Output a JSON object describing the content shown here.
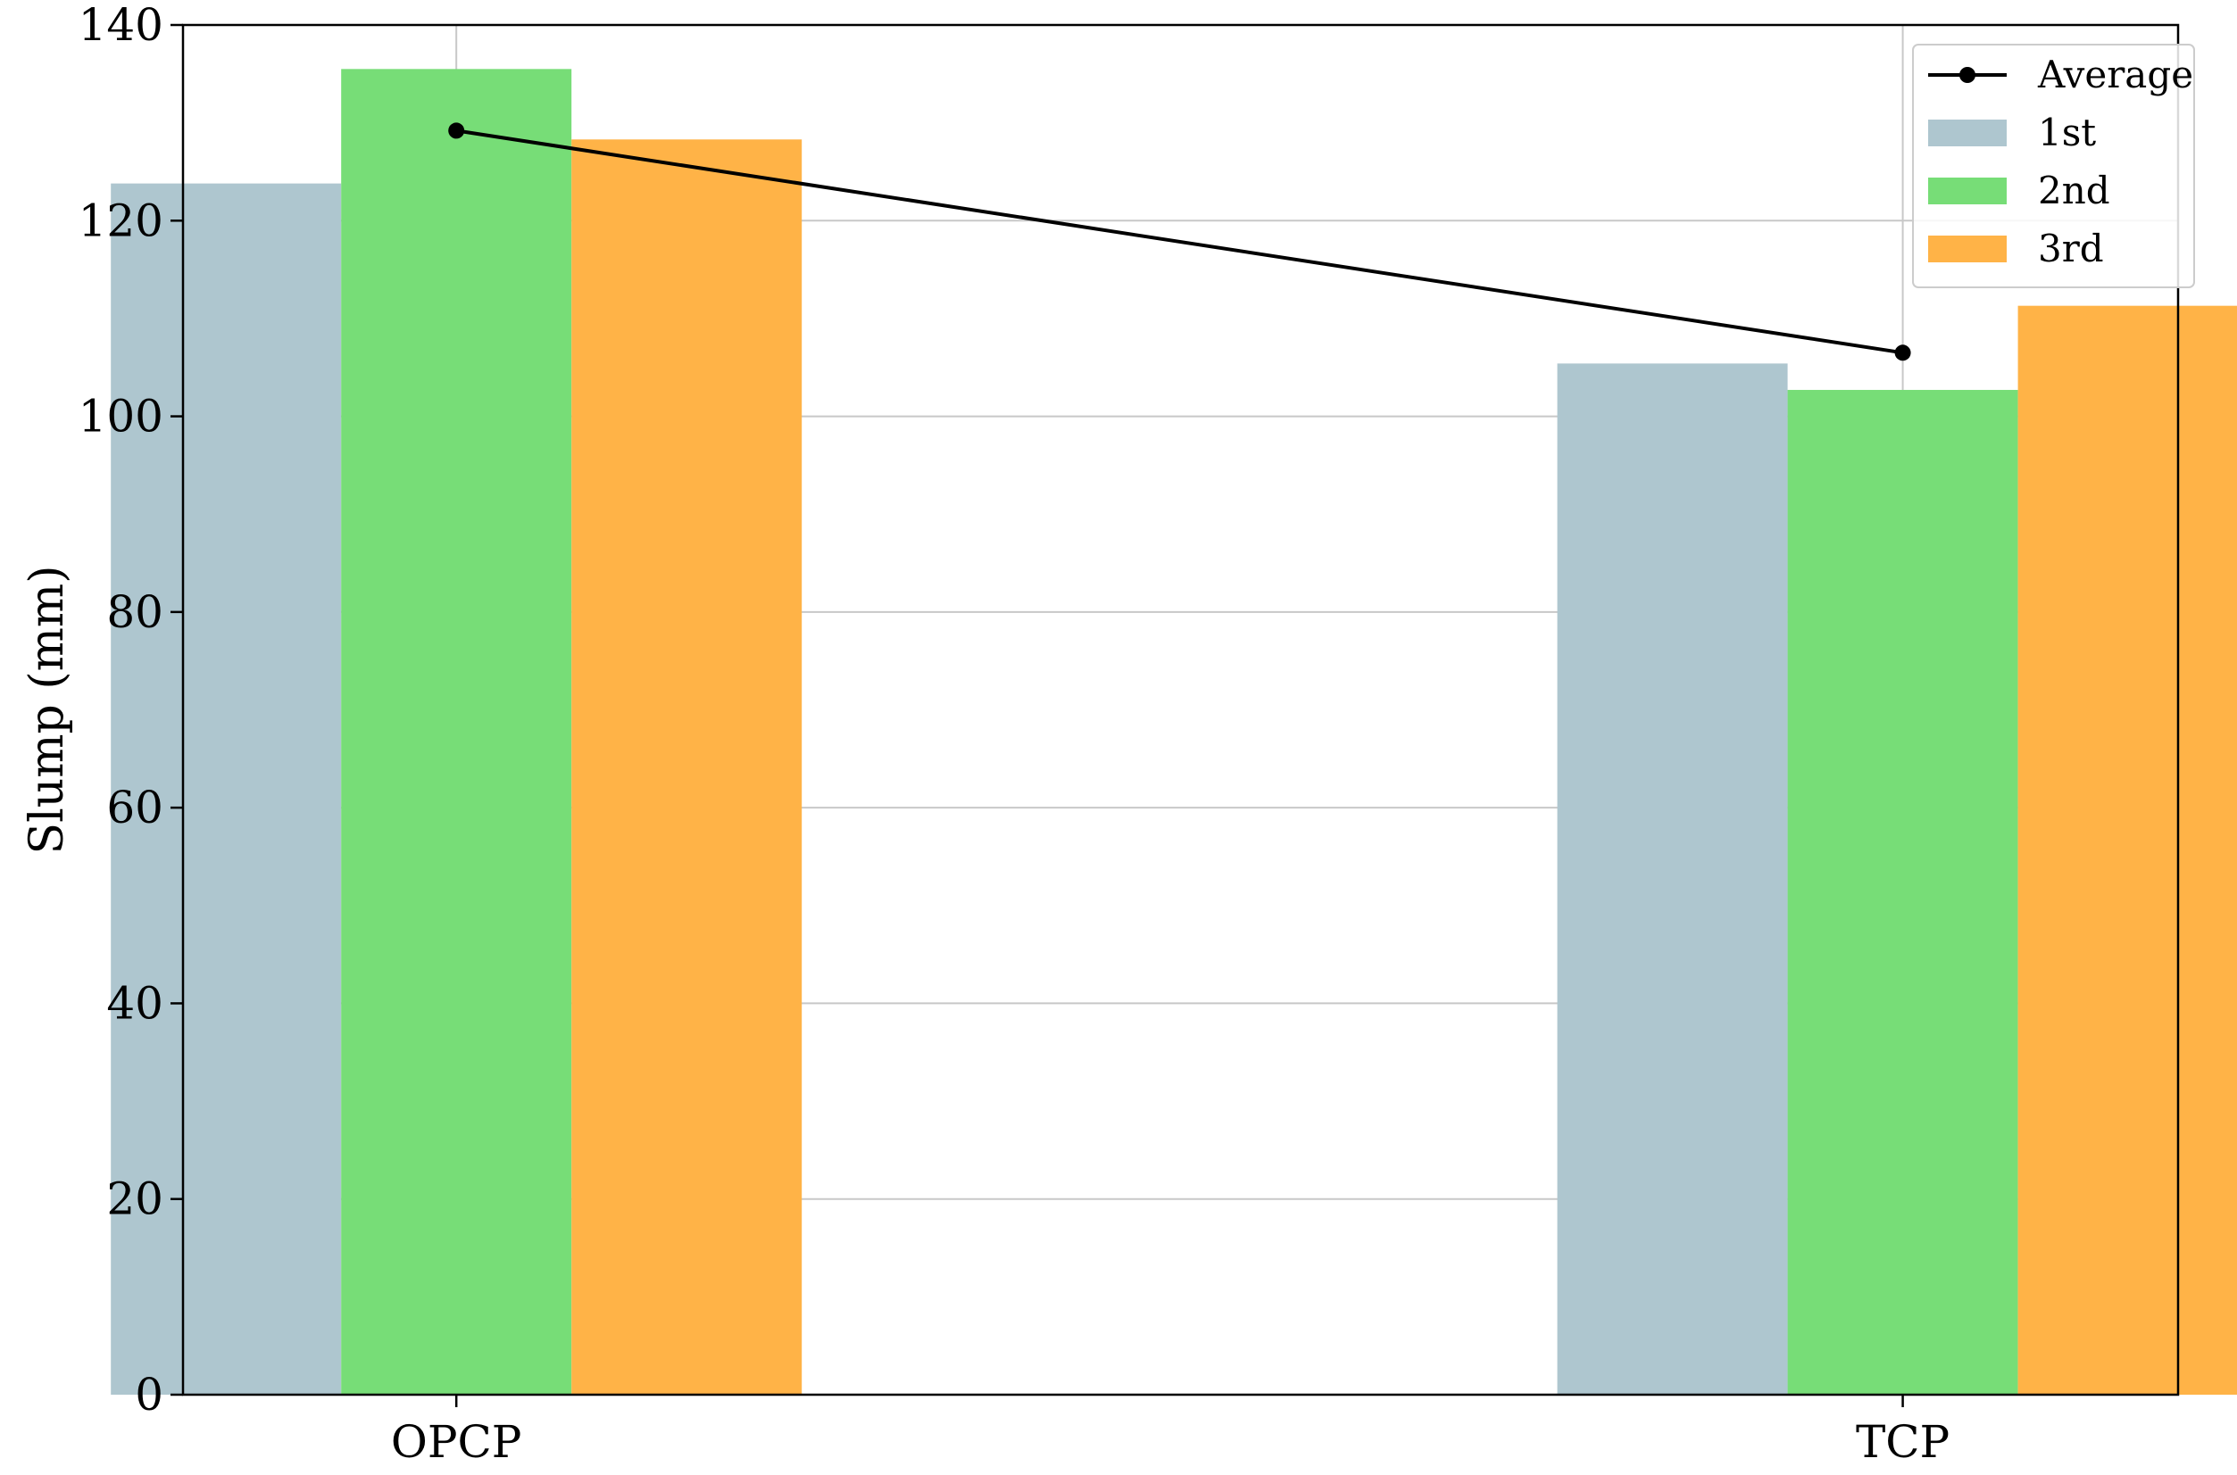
{
  "chart_data": {
    "type": "bar",
    "categories": [
      "OPCP",
      "TCP"
    ],
    "series": [
      {
        "name": "1st",
        "values": [
          123.8,
          105.4
        ],
        "color": "#aec6cf"
      },
      {
        "name": "2nd",
        "values": [
          135.5,
          102.7
        ],
        "color": "#77dd77"
      },
      {
        "name": "3rd",
        "values": [
          128.3,
          111.3
        ],
        "color": "#ffb347"
      }
    ],
    "line_series": {
      "name": "Average",
      "values": [
        129.2,
        106.5
      ],
      "color": "#000000"
    },
    "title": "",
    "xlabel": "",
    "ylabel": "Slump (mm)",
    "ylim": [
      0,
      140
    ],
    "yticks": [
      0,
      20,
      40,
      60,
      80,
      100,
      120,
      140
    ],
    "grid": true,
    "legend_position": "top-right"
  }
}
